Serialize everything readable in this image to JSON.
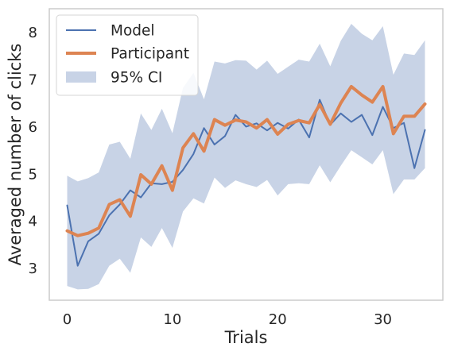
{
  "chart_data": {
    "type": "line",
    "xlabel": "Trials",
    "ylabel": "Averaged number of clicks",
    "xlim": [
      -1.7,
      35.7
    ],
    "ylim": [
      2.32,
      8.5
    ],
    "xticks": [
      0,
      10,
      20,
      30
    ],
    "yticks": [
      3,
      4,
      5,
      6,
      7,
      8
    ],
    "grid": false,
    "legend_position": "top-left",
    "x": [
      0,
      1,
      2,
      3,
      4,
      5,
      6,
      7,
      8,
      9,
      10,
      11,
      12,
      13,
      14,
      15,
      16,
      17,
      18,
      19,
      20,
      21,
      22,
      23,
      24,
      25,
      26,
      27,
      28,
      29,
      30,
      31,
      32,
      33,
      34
    ],
    "series": [
      {
        "name": "Model",
        "color": "#4c72b0",
        "values": [
          4.33,
          3.05,
          3.57,
          3.73,
          4.12,
          4.35,
          4.65,
          4.5,
          4.8,
          4.78,
          4.83,
          5.08,
          5.42,
          5.97,
          5.62,
          5.8,
          6.25,
          6.0,
          6.07,
          5.92,
          6.08,
          5.96,
          6.15,
          5.77,
          6.57,
          6.04,
          6.28,
          6.1,
          6.25,
          5.82,
          6.42,
          5.97,
          6.08,
          5.12,
          5.93
        ]
      },
      {
        "name": "Participant",
        "color": "#dd8452",
        "values": [
          3.79,
          3.69,
          3.74,
          3.85,
          4.35,
          4.45,
          4.1,
          4.98,
          4.78,
          5.17,
          4.65,
          5.55,
          5.85,
          5.48,
          6.15,
          6.03,
          6.14,
          6.1,
          5.97,
          6.15,
          5.84,
          6.05,
          6.13,
          6.08,
          6.47,
          6.05,
          6.5,
          6.85,
          6.67,
          6.52,
          6.85,
          5.85,
          6.22,
          6.22,
          6.48
        ]
      }
    ],
    "band": {
      "name": "95% CI",
      "color": "#c8d3e6",
      "lower": [
        2.62,
        2.55,
        2.56,
        2.66,
        3.05,
        3.2,
        2.9,
        3.65,
        3.45,
        3.85,
        3.43,
        4.2,
        4.48,
        4.37,
        4.92,
        4.7,
        4.86,
        4.78,
        4.72,
        4.87,
        4.54,
        4.78,
        4.8,
        4.78,
        5.18,
        4.82,
        5.17,
        5.5,
        5.35,
        5.2,
        5.5,
        4.57,
        4.88,
        4.88,
        5.12
      ],
      "upper": [
        4.96,
        4.84,
        4.91,
        5.03,
        5.62,
        5.68,
        5.32,
        6.28,
        5.93,
        6.38,
        5.86,
        6.82,
        7.14,
        6.58,
        7.38,
        7.34,
        7.41,
        7.4,
        7.21,
        7.4,
        7.12,
        7.27,
        7.42,
        7.38,
        7.76,
        7.28,
        7.82,
        8.18,
        7.97,
        7.83,
        8.13,
        7.1,
        7.55,
        7.52,
        7.83
      ]
    }
  }
}
